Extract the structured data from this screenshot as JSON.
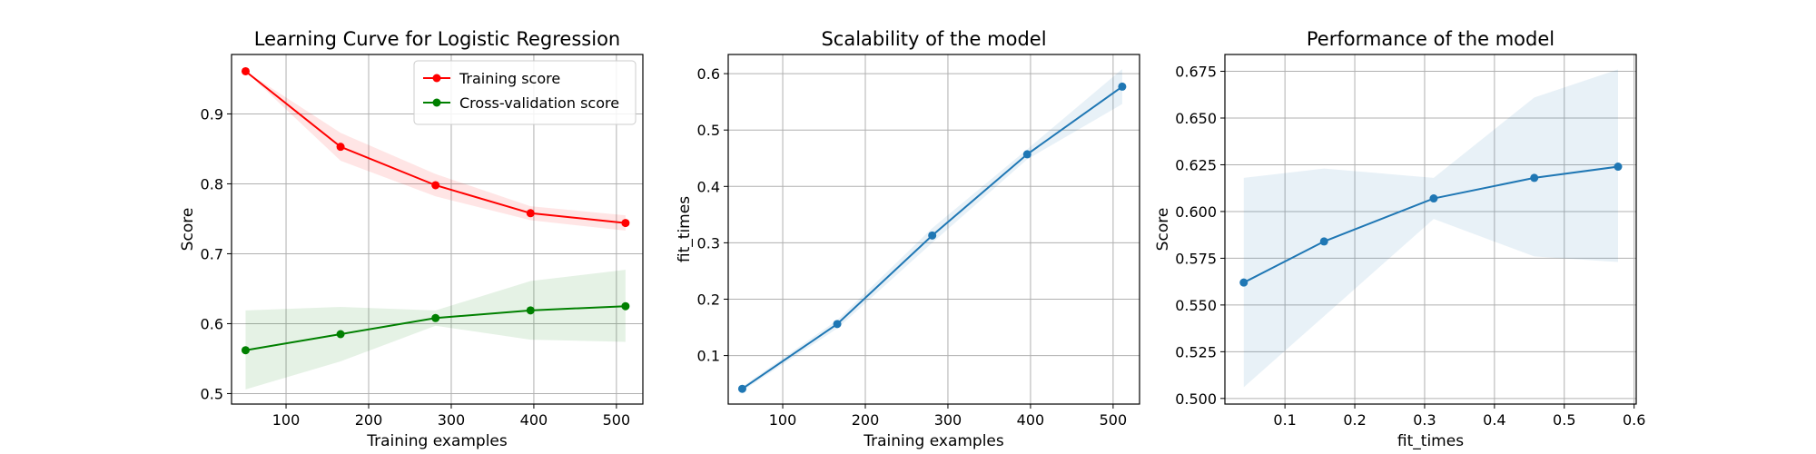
{
  "chart_data": [
    {
      "type": "line",
      "title": "Learning Curve for Logistic Regression",
      "xlabel": "Training examples",
      "ylabel": "Score",
      "xlim": [
        34,
        532
      ],
      "ylim": [
        0.485,
        0.985
      ],
      "xticks": [
        100,
        200,
        300,
        400,
        500
      ],
      "yticks": [
        0.5,
        0.6,
        0.7,
        0.8,
        0.9
      ],
      "ytick_decimals": 1,
      "grid": true,
      "legend": "top-right",
      "x": [
        51,
        166,
        281,
        396,
        511
      ],
      "series": [
        {
          "name": "Training score",
          "color": "#ff0000",
          "values": [
            0.961,
            0.853,
            0.798,
            0.758,
            0.744
          ],
          "band_lower": [
            0.961,
            0.833,
            0.782,
            0.748,
            0.733
          ],
          "band_upper": [
            0.961,
            0.873,
            0.814,
            0.768,
            0.755
          ]
        },
        {
          "name": "Cross-validation score",
          "color": "#008000",
          "values": [
            0.562,
            0.585,
            0.608,
            0.619,
            0.625
          ],
          "band_lower": [
            0.506,
            0.546,
            0.597,
            0.577,
            0.574
          ],
          "band_upper": [
            0.619,
            0.624,
            0.619,
            0.661,
            0.677
          ]
        }
      ]
    },
    {
      "type": "line",
      "title": "Scalability of the model",
      "xlabel": "Training examples",
      "ylabel": "fit_times",
      "xlim": [
        34,
        532
      ],
      "ylim": [
        0.014,
        0.634
      ],
      "xticks": [
        100,
        200,
        300,
        400,
        500
      ],
      "yticks": [
        0.1,
        0.2,
        0.3,
        0.4,
        0.5,
        0.6
      ],
      "ytick_decimals": 1,
      "grid": true,
      "x": [
        51,
        166,
        281,
        396,
        511
      ],
      "series": [
        {
          "name": "",
          "color": "#1f77b4",
          "values": [
            0.041,
            0.156,
            0.313,
            0.457,
            0.577
          ],
          "band_lower": [
            0.037,
            0.148,
            0.3,
            0.448,
            0.546
          ],
          "band_upper": [
            0.045,
            0.163,
            0.326,
            0.466,
            0.608
          ]
        }
      ]
    },
    {
      "type": "line",
      "title": "Performance of the model",
      "xlabel": "fit_times",
      "ylabel": "Score",
      "xlim": [
        0.014,
        0.603
      ],
      "ylim": [
        0.497,
        0.684
      ],
      "xticks": [
        0.1,
        0.2,
        0.3,
        0.4,
        0.5,
        0.6
      ],
      "yticks": [
        0.5,
        0.525,
        0.55,
        0.575,
        0.6,
        0.625,
        0.65,
        0.675
      ],
      "ytick_decimals": 3,
      "xtick_decimals": 1,
      "grid": true,
      "x": [
        0.041,
        0.156,
        0.313,
        0.457,
        0.577
      ],
      "series": [
        {
          "name": "",
          "color": "#1f77b4",
          "values": [
            0.562,
            0.584,
            0.607,
            0.618,
            0.624
          ],
          "band_lower": [
            0.506,
            0.544,
            0.596,
            0.576,
            0.573
          ],
          "band_upper": [
            0.618,
            0.623,
            0.618,
            0.661,
            0.676
          ]
        }
      ]
    }
  ]
}
